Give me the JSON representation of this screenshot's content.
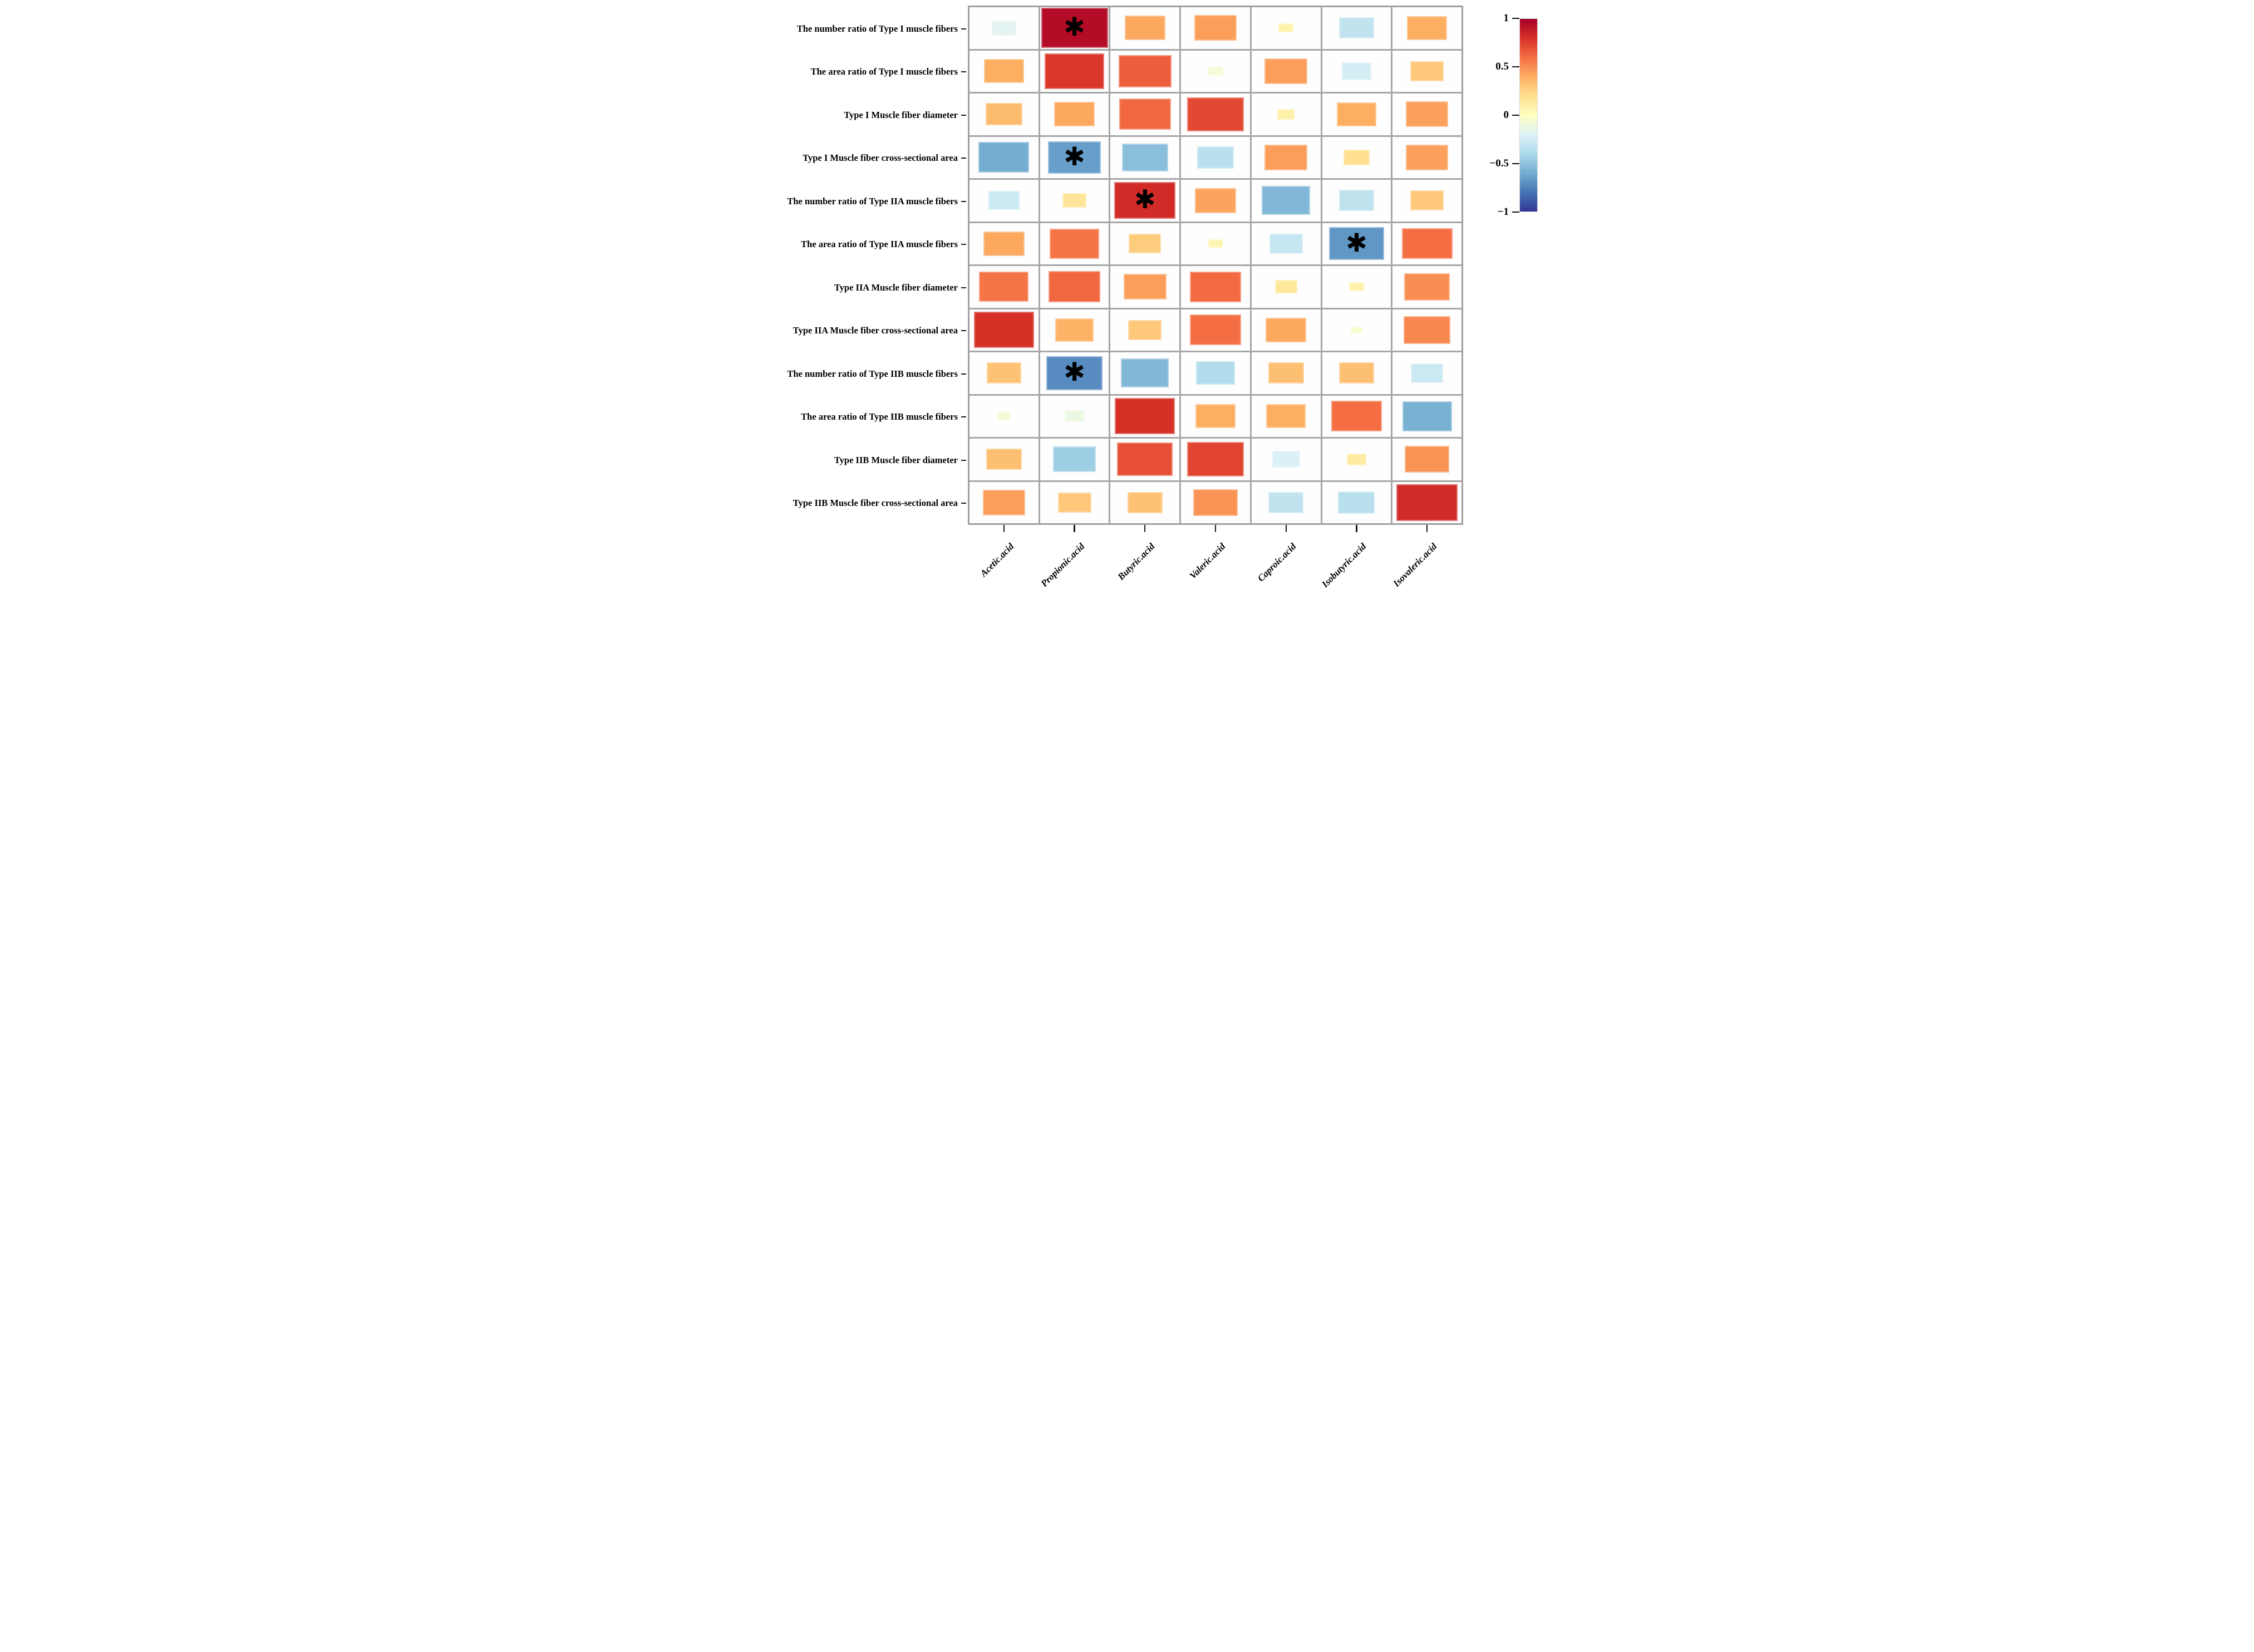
{
  "figure": {
    "background": "#ffffff"
  },
  "chart_data": {
    "type": "heatmap",
    "variant": "correlation-matrix-sized-squares",
    "title": "",
    "xlabel": "",
    "ylabel": "",
    "rows": [
      "The number ratio of Type I muscle fibers",
      "The area ratio of Type I muscle fibers",
      "Type I Muscle fiber diameter",
      "Type I Muscle fiber cross-sectional area",
      "The number ratio of Type IIA muscle fibers",
      "The area ratio of Type IIA muscle fibers",
      "Type IIA Muscle fiber diameter",
      "Type IIA Muscle fiber cross-sectional area",
      "The number ratio of Type IIB muscle fibers",
      "The area ratio of Type IIB muscle fibers",
      "Type IIB Muscle fiber diameter",
      "Type IIB Muscle fiber cross-sectional area"
    ],
    "columns": [
      "Acetic.acid",
      "Propionic.acid",
      "Butyric.acid",
      "Valeric.acid",
      "Caproic.acid",
      "Isobutyric.acid",
      "Isovaleric.acid"
    ],
    "values": [
      [
        -0.18,
        0.95,
        0.42,
        0.45,
        0.08,
        -0.32,
        0.4
      ],
      [
        0.4,
        0.78,
        0.65,
        -0.08,
        0.45,
        -0.25,
        0.3
      ],
      [
        0.35,
        0.42,
        0.62,
        0.72,
        0.1,
        0.4,
        0.44
      ],
      [
        -0.6,
        -0.65,
        -0.52,
        -0.35,
        0.45,
        0.2,
        0.44
      ],
      [
        -0.27,
        0.17,
        0.82,
        0.43,
        -0.55,
        -0.33,
        0.3
      ],
      [
        0.42,
        0.58,
        0.28,
        0.07,
        -0.3,
        -0.68,
        0.6
      ],
      [
        0.58,
        0.62,
        0.45,
        0.61,
        0.15,
        0.08,
        0.5
      ],
      [
        0.8,
        0.38,
        0.3,
        0.6,
        0.42,
        -0.05,
        0.52
      ],
      [
        0.32,
        -0.72,
        -0.55,
        -0.38,
        0.33,
        0.33,
        -0.28
      ],
      [
        -0.07,
        -0.12,
        0.8,
        0.4,
        0.4,
        0.6,
        -0.58
      ],
      [
        0.33,
        -0.45,
        0.7,
        0.73,
        -0.22,
        0.12,
        0.48
      ],
      [
        0.45,
        0.3,
        0.32,
        0.48,
        -0.32,
        -0.35,
        0.82
      ]
    ],
    "significant_cells": [
      [
        0,
        1
      ],
      [
        3,
        1
      ],
      [
        4,
        2
      ],
      [
        5,
        5
      ],
      [
        8,
        1
      ]
    ],
    "significance_marker": "✱",
    "value_range": [
      -1,
      1
    ],
    "grid_on": true,
    "grid_line_color": "#a6a6a6",
    "cell_background": "#fefefe",
    "colorbar": {
      "position": "right",
      "tick_labels": [
        "1",
        "0.5",
        "0",
        "−0.5",
        "−1"
      ],
      "tick_values": [
        1,
        0.5,
        0,
        -0.5,
        -1
      ],
      "colormap": "RdYlBu (red = +1, blue = −1)",
      "colors_top_to_bottom": [
        "#a50026",
        "#d73027",
        "#f46d43",
        "#fdae61",
        "#fee090",
        "#ffffbf",
        "#e0f3f8",
        "#abd9e9",
        "#74add1",
        "#4575b4",
        "#313695"
      ]
    }
  }
}
